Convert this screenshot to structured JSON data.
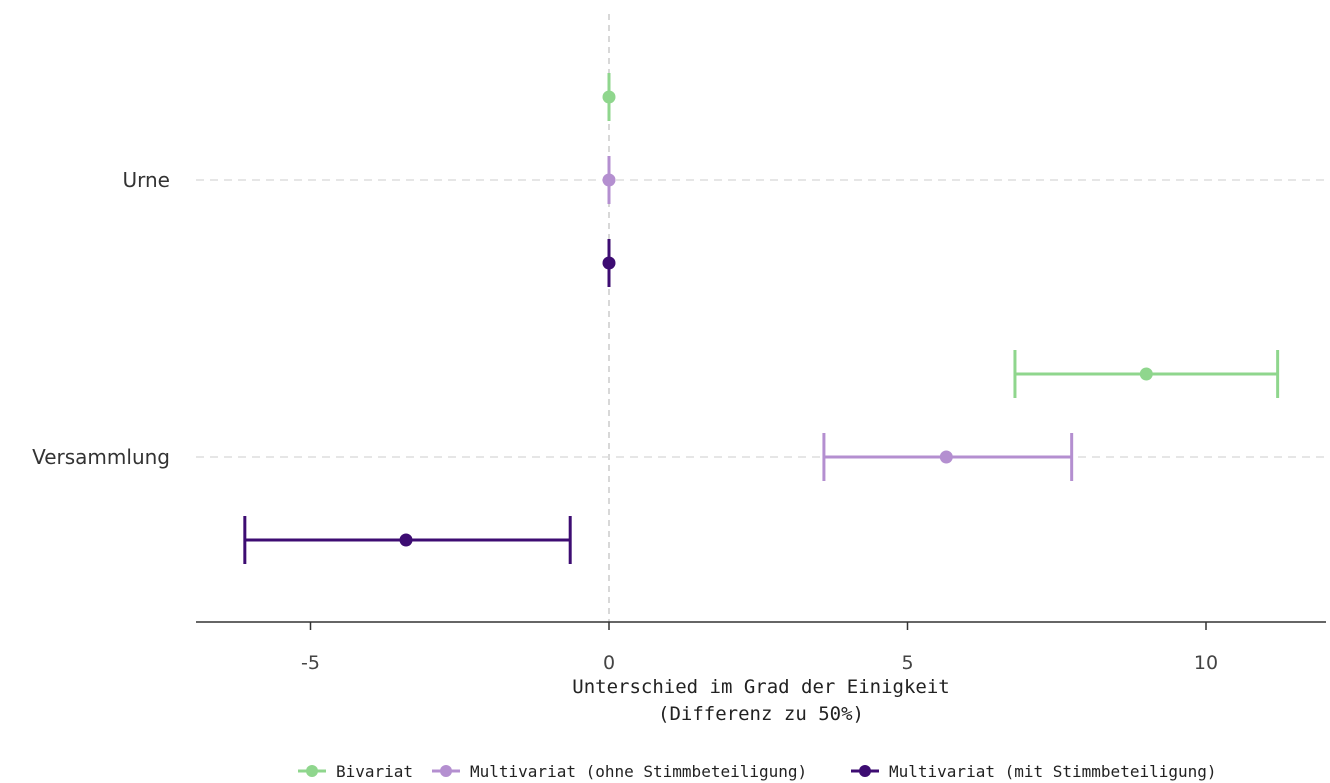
{
  "chart_data": {
    "type": "dot-errorbar",
    "orientation": "horizontal",
    "categories": [
      "Urne",
      "Versammlung"
    ],
    "series": [
      {
        "name": "Bivariat",
        "color": "#8fd68d",
        "points": [
          {
            "category": "Urne",
            "estimate": 0.0,
            "lower": 0.0,
            "upper": 0.0
          },
          {
            "category": "Versammlung",
            "estimate": 9.0,
            "lower": 6.8,
            "upper": 11.2
          }
        ]
      },
      {
        "name": "Multivariat (ohne Stimmbeteiligung)",
        "color": "#b48fd0",
        "points": [
          {
            "category": "Urne",
            "estimate": 0.0,
            "lower": 0.0,
            "upper": 0.0
          },
          {
            "category": "Versammlung",
            "estimate": 5.65,
            "lower": 3.6,
            "upper": 7.75
          }
        ]
      },
      {
        "name": "Multivariat (mit Stimmbeteiligung)",
        "color": "#3d0c72",
        "points": [
          {
            "category": "Urne",
            "estimate": 0.0,
            "lower": 0.0,
            "upper": 0.0
          },
          {
            "category": "Versammlung",
            "estimate": -3.4,
            "lower": -6.1,
            "upper": -0.65
          }
        ]
      }
    ],
    "xlabel": [
      "Unterschied im Grad der Einigkeit",
      "(Differenz zu 50%)"
    ],
    "xlim": [
      -7,
      12
    ],
    "xticks": [
      -5,
      0,
      5,
      10
    ],
    "xtick_labels": [
      "-5",
      "0",
      "5",
      "10"
    ],
    "reference_line": 0,
    "grid": "horizontal dashed at categories",
    "legend_position": "bottom"
  }
}
